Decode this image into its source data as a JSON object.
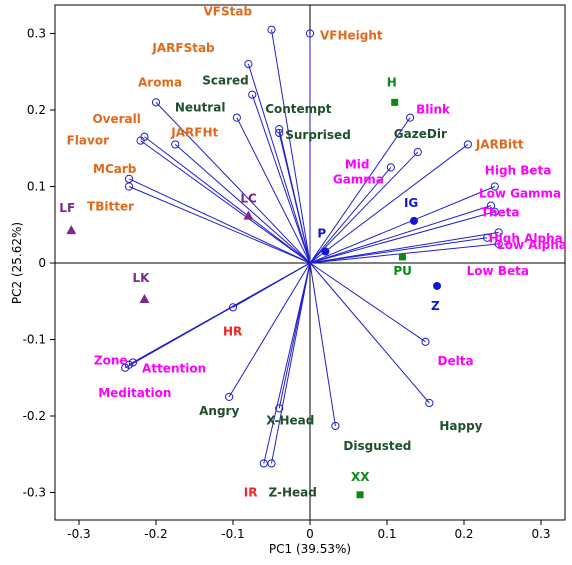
{
  "colors": {
    "vector": "#1f1fcc",
    "orange": "#e06a1a",
    "darkgreen": "#1f4f2b",
    "magenta": "#ff00ff",
    "red": "#e82828",
    "purple": "#7a2a8f",
    "blue": "#1414d8",
    "green": "#0a8a14",
    "axis": "#000000"
  },
  "chart_data": {
    "type": "scatter",
    "subtype": "pca-biplot",
    "xlabel": "PC1 (39.53%)",
    "ylabel": "PC2 (25.62%)",
    "xlim": [
      -0.34,
      0.34
    ],
    "ylim": [
      -0.34,
      0.34
    ],
    "xticks": [
      -0.3,
      -0.2,
      -0.1,
      0,
      0.1,
      0.2,
      0.3
    ],
    "yticks": [
      -0.3,
      -0.2,
      -0.1,
      0,
      0.1,
      0.2,
      0.3
    ],
    "xtick_labels": [
      "-0.3",
      "-0.2",
      "-0.1",
      "0",
      "0.1",
      "0.2",
      "0.3"
    ],
    "ytick_labels": [
      "-0.3",
      "-0.2",
      "-0.1",
      "0",
      "0.1",
      "0.2",
      "0.3"
    ],
    "grid": false,
    "loadings": [
      {
        "label": "VFStab",
        "x": -0.05,
        "y": 0.305,
        "color": "orange"
      },
      {
        "label": "VFHeight",
        "x": 0.0,
        "y": 0.3,
        "color": "orange"
      },
      {
        "label": "JARFStab",
        "x": -0.08,
        "y": 0.26,
        "color": "orange"
      },
      {
        "label": "Aroma",
        "x": -0.2,
        "y": 0.21,
        "color": "orange"
      },
      {
        "label": "Overall",
        "x": -0.215,
        "y": 0.165,
        "color": "orange"
      },
      {
        "label": "Flavor",
        "x": -0.22,
        "y": 0.16,
        "color": "orange"
      },
      {
        "label": "JARFHt",
        "x": -0.175,
        "y": 0.155,
        "color": "orange"
      },
      {
        "label": "MCarb",
        "x": -0.235,
        "y": 0.11,
        "color": "orange"
      },
      {
        "label": "TBitter",
        "x": -0.235,
        "y": 0.1,
        "color": "orange"
      },
      {
        "label": "Scared",
        "x": -0.075,
        "y": 0.22,
        "color": "darkgreen"
      },
      {
        "label": "Neutral",
        "x": -0.095,
        "y": 0.19,
        "color": "darkgreen"
      },
      {
        "label": "Contempt",
        "x": -0.04,
        "y": 0.175,
        "color": "darkgreen"
      },
      {
        "label": "Surprised",
        "x": -0.04,
        "y": 0.17,
        "color": "darkgreen"
      },
      {
        "label": "GazeDir",
        "x": 0.14,
        "y": 0.145,
        "color": "darkgreen"
      },
      {
        "label": "Blink",
        "x": 0.13,
        "y": 0.19,
        "color": "magenta"
      },
      {
        "label": "Mid Gamma",
        "x": 0.105,
        "y": 0.125,
        "color": "magenta"
      },
      {
        "label": "JARBitt",
        "x": 0.205,
        "y": 0.155,
        "color": "orange"
      },
      {
        "label": "High Beta",
        "x": 0.24,
        "y": 0.1,
        "color": "magenta"
      },
      {
        "label": "Low Gamma",
        "x": 0.235,
        "y": 0.075,
        "color": "magenta"
      },
      {
        "label": "Theta",
        "x": 0.24,
        "y": 0.067,
        "color": "magenta"
      },
      {
        "label": "High Alpha",
        "x": 0.245,
        "y": 0.04,
        "color": "magenta"
      },
      {
        "label": "Low Alpha",
        "x": 0.23,
        "y": 0.033,
        "color": "magenta"
      },
      {
        "label": "Low Beta",
        "x": 0.245,
        "y": 0.025,
        "color": "magenta"
      },
      {
        "label": "Delta",
        "x": 0.15,
        "y": -0.103,
        "color": "magenta"
      },
      {
        "label": "Happy",
        "x": 0.155,
        "y": -0.183,
        "color": "darkgreen"
      },
      {
        "label": "Disgusted",
        "x": 0.033,
        "y": -0.213,
        "color": "darkgreen"
      },
      {
        "label": "X-Head",
        "x": -0.04,
        "y": -0.19,
        "color": "darkgreen"
      },
      {
        "label": "Angry",
        "x": -0.105,
        "y": -0.175,
        "color": "darkgreen"
      },
      {
        "label": "HR",
        "x": -0.1,
        "y": -0.058,
        "color": "red"
      },
      {
        "label": "Zone",
        "x": -0.23,
        "y": -0.13,
        "color": "magenta"
      },
      {
        "label": "Attention",
        "x": -0.235,
        "y": -0.133,
        "color": "magenta"
      },
      {
        "label": "Meditation",
        "x": -0.24,
        "y": -0.137,
        "color": "magenta"
      },
      {
        "label": "IR",
        "x": -0.06,
        "y": -0.262,
        "color": "red"
      },
      {
        "label": "Z-Head",
        "x": -0.05,
        "y": -0.262,
        "color": "darkgreen"
      }
    ],
    "scores": [
      {
        "label": "H",
        "x": 0.11,
        "y": 0.21,
        "marker": "square",
        "color": "green"
      },
      {
        "label": "IG",
        "x": 0.135,
        "y": 0.055,
        "marker": "circle",
        "color": "blue"
      },
      {
        "label": "P",
        "x": 0.02,
        "y": 0.015,
        "marker": "circle",
        "color": "blue"
      },
      {
        "label": "PU",
        "x": 0.12,
        "y": 0.008,
        "marker": "square",
        "color": "green"
      },
      {
        "label": "Z",
        "x": 0.165,
        "y": -0.03,
        "marker": "circle",
        "color": "blue"
      },
      {
        "label": "LF",
        "x": -0.31,
        "y": 0.043,
        "marker": "triangle",
        "color": "purple"
      },
      {
        "label": "LC",
        "x": -0.08,
        "y": 0.062,
        "marker": "triangle",
        "color": "purple"
      },
      {
        "label": "LK",
        "x": -0.215,
        "y": -0.047,
        "marker": "triangle",
        "color": "purple"
      },
      {
        "label": "XX",
        "x": 0.065,
        "y": -0.303,
        "marker": "square",
        "color": "green"
      }
    ]
  }
}
